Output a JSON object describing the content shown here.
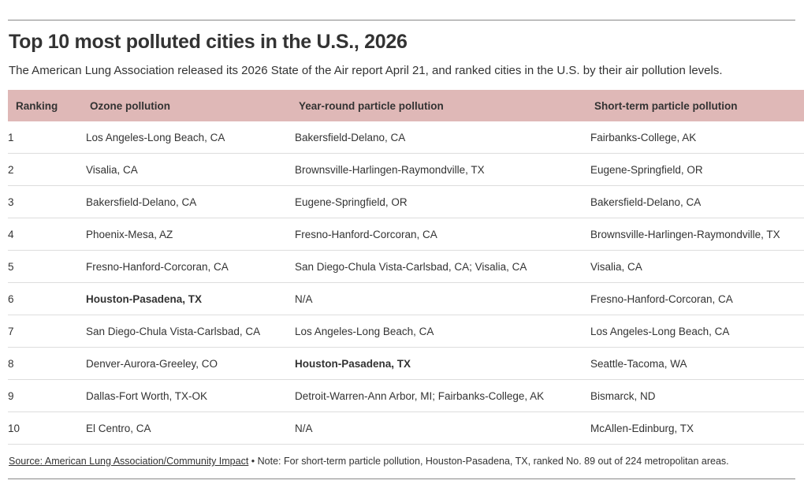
{
  "title": "Top 10 most polluted cities in the U.S., 2026",
  "subtitle": "The American Lung Association released its 2026 State of the Air report April 21, and ranked cities in the U.S. by their air pollution levels.",
  "table": {
    "headers": [
      "Ranking",
      "Ozone pollution",
      "Year-round particle pollution",
      "Short-term particle pollution"
    ],
    "rows": [
      [
        "1",
        "Los Angeles-Long Beach, CA",
        "Bakersfield-Delano, CA",
        "Fairbanks-College, AK"
      ],
      [
        "2",
        "Visalia, CA",
        "Brownsville-Harlingen-Raymondville, TX",
        "Eugene-Springfield, OR"
      ],
      [
        "3",
        "Bakersfield-Delano, CA",
        "Eugene-Springfield, OR",
        "Bakersfield-Delano, CA"
      ],
      [
        "4",
        "Phoenix-Mesa, AZ",
        "Fresno-Hanford-Corcoran, CA",
        "Brownsville-Harlingen-Raymondville, TX"
      ],
      [
        "5",
        "Fresno-Hanford-Corcoran, CA",
        "San Diego-Chula Vista-Carlsbad, CA; Visalia, CA",
        "Visalia, CA"
      ],
      [
        "6",
        "Houston-Pasadena, TX",
        "N/A",
        "Fresno-Hanford-Corcoran, CA"
      ],
      [
        "7",
        "San Diego-Chula Vista-Carlsbad, CA",
        "Los Angeles-Long Beach, CA",
        "Los Angeles-Long Beach, CA"
      ],
      [
        "8",
        "Denver-Aurora-Greeley, CO",
        "Houston-Pasadena, TX",
        "Seattle-Tacoma, WA"
      ],
      [
        "9",
        "Dallas-Fort Worth, TX-OK",
        "Detroit-Warren-Ann Arbor, MI; Fairbanks-College, AK",
        "Bismarck, ND"
      ],
      [
        "10",
        "El Centro, CA",
        "N/A",
        "McAllen-Edinburg, TX"
      ]
    ]
  },
  "footer": {
    "source_link": "Source: American Lung Association/Community Impact",
    "note": " • Note: For short-term particle pollution, Houston-Pasadena, TX, ranked No. 89 out of 224 metropolitan areas."
  },
  "colors": {
    "header_bg": "#dfb8b7",
    "text": "#333333",
    "row_divider": "#dddddd"
  }
}
